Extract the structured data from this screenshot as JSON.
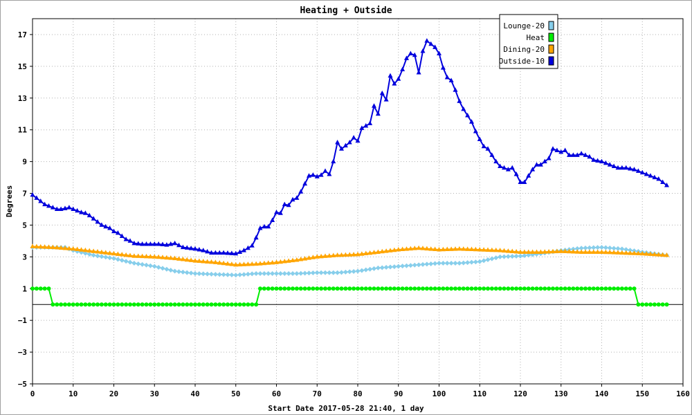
{
  "chart_data": {
    "type": "line",
    "title": "Heating + Outside",
    "xlabel": "Start Date 2017-05-28 21:40, 1 day",
    "ylabel": "Degrees",
    "xlim": [
      0,
      160
    ],
    "ylim": [
      -5,
      18
    ],
    "x_ticks": [
      0,
      10,
      20,
      30,
      40,
      50,
      60,
      70,
      80,
      90,
      100,
      110,
      120,
      130,
      140,
      150,
      160
    ],
    "y_ticks": [
      -5,
      -3,
      -1,
      1,
      3,
      5,
      7,
      9,
      11,
      13,
      15,
      17
    ],
    "x_tick_labels": [
      "0",
      "10",
      "20",
      "30",
      "40",
      "50",
      "60",
      "70",
      "80",
      "90",
      "100",
      "110",
      "120",
      "130",
      "140",
      "150",
      "160"
    ],
    "y_tick_labels": [
      "−5",
      "−3",
      "−1",
      "1",
      "3",
      "5",
      "7",
      "9",
      "11",
      "13",
      "15",
      "17"
    ],
    "grid": true,
    "zero_line": true,
    "legend_position": "top-right",
    "series": [
      {
        "name": "Lounge-20",
        "color": "#87ceeb",
        "marker": "diamond",
        "points": [
          [
            0,
            3.6
          ],
          [
            5,
            3.6
          ],
          [
            8,
            3.6
          ],
          [
            10,
            3.4
          ],
          [
            15,
            3.1
          ],
          [
            20,
            2.9
          ],
          [
            25,
            2.6
          ],
          [
            30,
            2.4
          ],
          [
            35,
            2.1
          ],
          [
            40,
            1.95
          ],
          [
            45,
            1.9
          ],
          [
            50,
            1.85
          ],
          [
            55,
            1.95
          ],
          [
            60,
            1.95
          ],
          [
            65,
            1.95
          ],
          [
            70,
            2.0
          ],
          [
            75,
            2.0
          ],
          [
            80,
            2.1
          ],
          [
            85,
            2.3
          ],
          [
            90,
            2.4
          ],
          [
            95,
            2.5
          ],
          [
            100,
            2.6
          ],
          [
            105,
            2.6
          ],
          [
            110,
            2.7
          ],
          [
            115,
            3.0
          ],
          [
            120,
            3.05
          ],
          [
            125,
            3.2
          ],
          [
            130,
            3.4
          ],
          [
            135,
            3.55
          ],
          [
            140,
            3.6
          ],
          [
            145,
            3.5
          ],
          [
            150,
            3.3
          ],
          [
            156,
            3.1
          ]
        ]
      },
      {
        "name": "Heat",
        "color": "#00ee00",
        "marker": "circle",
        "points": [
          [
            0,
            1
          ],
          [
            4,
            1
          ],
          [
            5,
            0
          ],
          [
            55,
            0
          ],
          [
            56,
            1
          ],
          [
            148,
            1
          ],
          [
            149,
            0
          ],
          [
            156,
            0
          ]
        ]
      },
      {
        "name": "Dining-20",
        "color": "#ffa500",
        "marker": "triangle",
        "points": [
          [
            0,
            3.65
          ],
          [
            5,
            3.6
          ],
          [
            10,
            3.5
          ],
          [
            15,
            3.35
          ],
          [
            20,
            3.2
          ],
          [
            25,
            3.05
          ],
          [
            30,
            3.0
          ],
          [
            35,
            2.9
          ],
          [
            40,
            2.75
          ],
          [
            45,
            2.65
          ],
          [
            50,
            2.5
          ],
          [
            55,
            2.55
          ],
          [
            60,
            2.65
          ],
          [
            65,
            2.8
          ],
          [
            70,
            3.0
          ],
          [
            75,
            3.1
          ],
          [
            80,
            3.15
          ],
          [
            85,
            3.3
          ],
          [
            90,
            3.45
          ],
          [
            95,
            3.55
          ],
          [
            100,
            3.45
          ],
          [
            105,
            3.5
          ],
          [
            110,
            3.45
          ],
          [
            115,
            3.4
          ],
          [
            120,
            3.3
          ],
          [
            125,
            3.3
          ],
          [
            130,
            3.35
          ],
          [
            135,
            3.3
          ],
          [
            140,
            3.3
          ],
          [
            145,
            3.25
          ],
          [
            150,
            3.2
          ],
          [
            156,
            3.1
          ]
        ]
      },
      {
        "name": "Outside-10",
        "color": "#0000dd",
        "marker": "triangle",
        "points": [
          [
            0,
            6.9
          ],
          [
            1,
            6.7
          ],
          [
            2,
            6.5
          ],
          [
            3,
            6.3
          ],
          [
            4,
            6.2
          ],
          [
            5,
            6.1
          ],
          [
            6,
            6.0
          ],
          [
            7,
            6.0
          ],
          [
            8,
            6.05
          ],
          [
            9,
            6.1
          ],
          [
            10,
            6.0
          ],
          [
            11,
            5.9
          ],
          [
            12,
            5.8
          ],
          [
            13,
            5.75
          ],
          [
            14,
            5.6
          ],
          [
            15,
            5.4
          ],
          [
            16,
            5.2
          ],
          [
            17,
            5.0
          ],
          [
            18,
            4.9
          ],
          [
            19,
            4.8
          ],
          [
            20,
            4.6
          ],
          [
            21,
            4.5
          ],
          [
            22,
            4.3
          ],
          [
            23,
            4.1
          ],
          [
            24,
            4.0
          ],
          [
            25,
            3.85
          ],
          [
            27,
            3.8
          ],
          [
            29,
            3.8
          ],
          [
            31,
            3.8
          ],
          [
            33,
            3.75
          ],
          [
            35,
            3.85
          ],
          [
            37,
            3.6
          ],
          [
            40,
            3.5
          ],
          [
            42,
            3.4
          ],
          [
            44,
            3.25
          ],
          [
            47,
            3.25
          ],
          [
            50,
            3.2
          ],
          [
            52,
            3.4
          ],
          [
            54,
            3.7
          ],
          [
            55,
            4.2
          ],
          [
            56,
            4.8
          ],
          [
            57,
            4.9
          ],
          [
            58,
            4.9
          ],
          [
            59,
            5.3
          ],
          [
            60,
            5.8
          ],
          [
            61,
            5.75
          ],
          [
            62,
            6.3
          ],
          [
            63,
            6.25
          ],
          [
            64,
            6.6
          ],
          [
            65,
            6.7
          ],
          [
            66,
            7.1
          ],
          [
            67,
            7.6
          ],
          [
            68,
            8.1
          ],
          [
            69,
            8.15
          ],
          [
            70,
            8.05
          ],
          [
            71,
            8.15
          ],
          [
            72,
            8.4
          ],
          [
            73,
            8.2
          ],
          [
            74,
            9.0
          ],
          [
            75,
            10.2
          ],
          [
            76,
            9.8
          ],
          [
            77,
            10.0
          ],
          [
            78,
            10.2
          ],
          [
            79,
            10.5
          ],
          [
            80,
            10.3
          ],
          [
            81,
            11.1
          ],
          [
            82,
            11.25
          ],
          [
            83,
            11.4
          ],
          [
            84,
            12.5
          ],
          [
            85,
            12.0
          ],
          [
            86,
            13.3
          ],
          [
            87,
            12.9
          ],
          [
            88,
            14.4
          ],
          [
            89,
            13.9
          ],
          [
            90,
            14.2
          ],
          [
            91,
            14.8
          ],
          [
            92,
            15.5
          ],
          [
            93,
            15.8
          ],
          [
            94,
            15.7
          ],
          [
            95,
            14.6
          ],
          [
            96,
            15.95
          ],
          [
            97,
            16.6
          ],
          [
            98,
            16.4
          ],
          [
            99,
            16.2
          ],
          [
            100,
            15.8
          ],
          [
            101,
            14.9
          ],
          [
            102,
            14.3
          ],
          [
            103,
            14.1
          ],
          [
            104,
            13.5
          ],
          [
            105,
            12.8
          ],
          [
            106,
            12.3
          ],
          [
            107,
            11.9
          ],
          [
            108,
            11.5
          ],
          [
            109,
            10.9
          ],
          [
            110,
            10.4
          ],
          [
            111,
            9.95
          ],
          [
            112,
            9.8
          ],
          [
            113,
            9.4
          ],
          [
            114,
            9.0
          ],
          [
            115,
            8.7
          ],
          [
            116,
            8.6
          ],
          [
            117,
            8.5
          ],
          [
            118,
            8.6
          ],
          [
            119,
            8.2
          ],
          [
            120,
            7.7
          ],
          [
            121,
            7.7
          ],
          [
            122,
            8.1
          ],
          [
            123,
            8.5
          ],
          [
            124,
            8.8
          ],
          [
            125,
            8.8
          ],
          [
            126,
            9.0
          ],
          [
            127,
            9.2
          ],
          [
            128,
            9.8
          ],
          [
            129,
            9.7
          ],
          [
            130,
            9.6
          ],
          [
            131,
            9.7
          ],
          [
            132,
            9.4
          ],
          [
            133,
            9.4
          ],
          [
            134,
            9.4
          ],
          [
            135,
            9.5
          ],
          [
            136,
            9.4
          ],
          [
            137,
            9.3
          ],
          [
            138,
            9.1
          ],
          [
            140,
            9.0
          ],
          [
            142,
            8.8
          ],
          [
            144,
            8.6
          ],
          [
            146,
            8.6
          ],
          [
            148,
            8.5
          ],
          [
            150,
            8.3
          ],
          [
            152,
            8.1
          ],
          [
            154,
            7.9
          ],
          [
            156,
            7.5
          ]
        ]
      }
    ]
  }
}
